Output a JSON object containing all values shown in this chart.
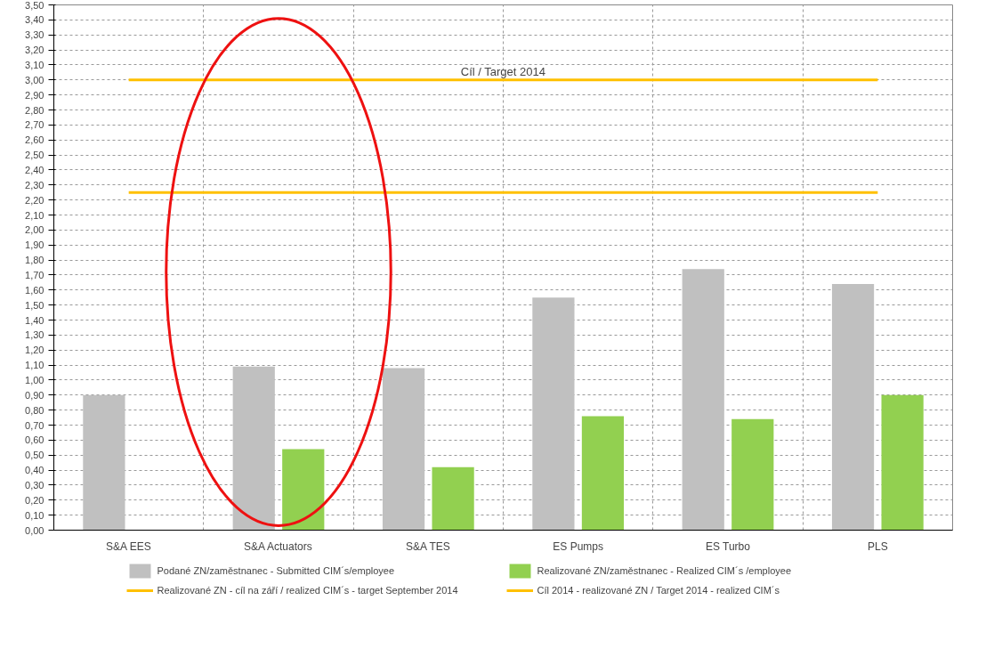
{
  "chart_data": {
    "type": "bar",
    "categories": [
      "S&A EES",
      "S&A Actuators",
      "S&A TES",
      "ES Pumps",
      "ES Turbo",
      "PLS"
    ],
    "series": [
      {
        "name": "Podané ZN/zaměstnanec - Submitted CIM´s/employee",
        "color": "#c0c0c0",
        "values": [
          0.9,
          1.09,
          1.08,
          1.55,
          1.74,
          1.64
        ]
      },
      {
        "name": "Realizované ZN/zaměstnanec - Realized CIM´s /employee",
        "color": "#92d050",
        "values": [
          null,
          0.54,
          0.42,
          0.76,
          0.74,
          0.9
        ]
      }
    ],
    "ref_lines": [
      {
        "axis": "y",
        "value": 2.25,
        "label": "Realizované ZN - cíl na září / realized CIM´s - target September 2014",
        "color": "#ffc000"
      },
      {
        "axis": "y",
        "value": 3.0,
        "label": "Cíl 2014 - realizované ZN / Target 2014 - realized CIM´s",
        "color": "#ffc000"
      }
    ],
    "annotations": [
      {
        "text": "Cíl / Target 2014",
        "y": 3.0
      }
    ],
    "ylim": [
      0,
      3.5
    ],
    "yticks": [
      {
        "value": 0,
        "label": "0,00"
      },
      {
        "value": 0.1,
        "label": "0,10"
      },
      {
        "value": 0.2,
        "label": "0,20"
      },
      {
        "value": 0.3,
        "label": "0,30"
      },
      {
        "value": 0.4,
        "label": "0,40"
      },
      {
        "value": 0.5,
        "label": "0,50"
      },
      {
        "value": 0.6,
        "label": "0,60"
      },
      {
        "value": 0.7,
        "label": "0,70"
      },
      {
        "value": 0.8,
        "label": "0,80"
      },
      {
        "value": 0.9,
        "label": "0,90"
      },
      {
        "value": 1.0,
        "label": "1,00"
      },
      {
        "value": 1.1,
        "label": "1,10"
      },
      {
        "value": 1.2,
        "label": "1,20"
      },
      {
        "value": 1.3,
        "label": "1,30"
      },
      {
        "value": 1.4,
        "label": "1,40"
      },
      {
        "value": 1.5,
        "label": "1,50"
      },
      {
        "value": 1.6,
        "label": "1,60"
      },
      {
        "value": 1.7,
        "label": "1,70"
      },
      {
        "value": 1.8,
        "label": "1,80"
      },
      {
        "value": 1.9,
        "label": "1,90"
      },
      {
        "value": 2.0,
        "label": "2,00"
      },
      {
        "value": 2.1,
        "label": "2,10"
      },
      {
        "value": 2.2,
        "label": "2,20"
      },
      {
        "value": 2.3,
        "label": "2,30"
      },
      {
        "value": 2.4,
        "label": "2,40"
      },
      {
        "value": 2.5,
        "label": "2,50"
      },
      {
        "value": 2.6,
        "label": "2,60"
      },
      {
        "value": 2.7,
        "label": "2,70"
      },
      {
        "value": 2.8,
        "label": "2,80"
      },
      {
        "value": 2.9,
        "label": "2,90"
      },
      {
        "value": 3.0,
        "label": "3,00"
      },
      {
        "value": 3.1,
        "label": "3,10"
      },
      {
        "value": 3.2,
        "label": "3,20"
      },
      {
        "value": 3.3,
        "label": "3,30"
      },
      {
        "value": 3.4,
        "label": "3,40"
      },
      {
        "value": 3.5,
        "label": "3,50"
      }
    ],
    "grid": true,
    "legend": "bottom"
  }
}
